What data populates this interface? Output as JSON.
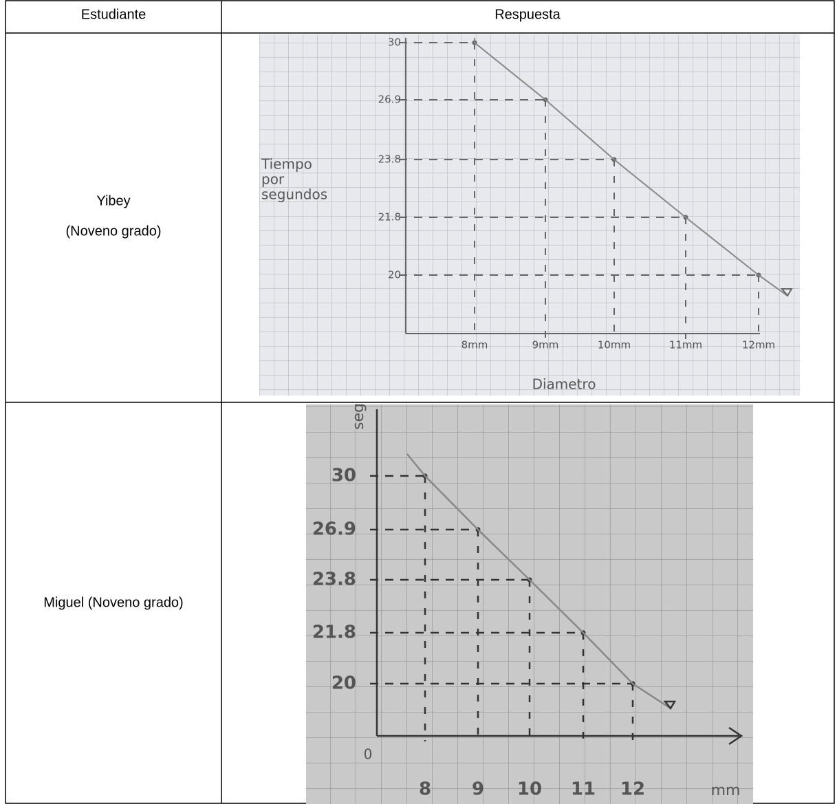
{
  "table": {
    "headers": [
      "Estudiante",
      "Respuesta"
    ],
    "rows": [
      {
        "student": [
          "Yibey",
          "(Noveno grado)"
        ],
        "response": {
          "y_title": [
            "Tiempo",
            "por",
            "segundos"
          ],
          "x_title": "Diametro",
          "y_labels": [
            "30",
            "26.9",
            "23.8",
            "21.8",
            "20"
          ],
          "x_labels": [
            "8mm",
            "9mm",
            "10mm",
            "11mm",
            "12mm"
          ]
        }
      },
      {
        "student": [
          "Miguel (Noveno grado)"
        ],
        "response": {
          "y_title": [
            "seg"
          ],
          "x_title": "mm",
          "origin": "0",
          "y_labels": [
            "30",
            "26.9",
            "23.8",
            "21.8",
            "20"
          ],
          "x_labels": [
            "8",
            "9",
            "10",
            "11",
            "12"
          ]
        }
      }
    ]
  }
}
